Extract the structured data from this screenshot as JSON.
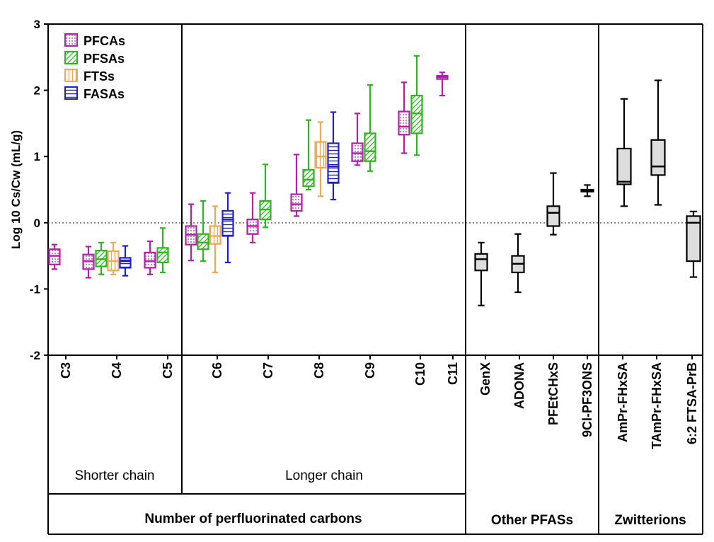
{
  "chart_data": {
    "type": "boxplot",
    "ylabel": "Log 10 Cs/Cw (mL/g)",
    "ylim": [
      -2,
      3
    ],
    "yticks": [
      -2,
      -1,
      0,
      1,
      2,
      3
    ],
    "reference_line": 0,
    "legend": [
      {
        "name": "PFCAs",
        "color": "#b41fa9",
        "pattern": "dots"
      },
      {
        "name": "PFSAs",
        "color": "#2eb51f",
        "pattern": "diagonal"
      },
      {
        "name": "FTSs",
        "color": "#f0a857",
        "pattern": "vertical"
      },
      {
        "name": "FASAs",
        "color": "#2121c9",
        "pattern": "horizontal"
      }
    ],
    "categories": [
      "C3",
      "C4",
      "C5",
      "C6",
      "C7",
      "C8",
      "C9",
      "C10",
      "C11",
      "GenX",
      "ADONA",
      "PFEtCHxS",
      "9Cl-PF3ONS",
      "AmPr-FHxSA",
      "TAmPr-FHxSA",
      "6:2 FTSA-PrB"
    ],
    "boxes": [
      {
        "category": "C3",
        "series": "PFCAs",
        "min": -0.7,
        "q1": -0.63,
        "median": -0.5,
        "q3": -0.4,
        "max": -0.33
      },
      {
        "category": "C4",
        "series": "PFCAs",
        "min": -0.83,
        "q1": -0.7,
        "median": -0.58,
        "q3": -0.48,
        "max": -0.36
      },
      {
        "category": "C4",
        "series": "PFSAs",
        "min": -0.78,
        "q1": -0.66,
        "median": -0.55,
        "q3": -0.42,
        "max": -0.3
      },
      {
        "category": "C4",
        "series": "FTSs",
        "min": -0.78,
        "q1": -0.72,
        "median": -0.58,
        "q3": -0.43,
        "max": -0.3
      },
      {
        "category": "C4",
        "series": "FASAs",
        "min": -0.8,
        "q1": -0.68,
        "median": -0.58,
        "q3": -0.53,
        "max": -0.35
      },
      {
        "category": "C5",
        "series": "PFCAs",
        "min": -0.78,
        "q1": -0.68,
        "median": -0.58,
        "q3": -0.45,
        "max": -0.28
      },
      {
        "category": "C5",
        "series": "PFSAs",
        "min": -0.75,
        "q1": -0.6,
        "median": -0.45,
        "q3": -0.38,
        "max": -0.08
      },
      {
        "category": "C6",
        "series": "PFCAs",
        "min": -0.57,
        "q1": -0.33,
        "median": -0.18,
        "q3": -0.05,
        "max": 0.28
      },
      {
        "category": "C6",
        "series": "PFSAs",
        "min": -0.58,
        "q1": -0.4,
        "median": -0.3,
        "q3": -0.17,
        "max": 0.33
      },
      {
        "category": "C6",
        "series": "FTSs",
        "min": -0.75,
        "q1": -0.32,
        "median": -0.2,
        "q3": -0.05,
        "max": 0.25
      },
      {
        "category": "C6",
        "series": "FASAs",
        "min": -0.6,
        "q1": -0.2,
        "median": 0.05,
        "q3": 0.18,
        "max": 0.45
      },
      {
        "category": "C7",
        "series": "PFCAs",
        "min": -0.3,
        "q1": -0.17,
        "median": -0.05,
        "q3": 0.05,
        "max": 0.45
      },
      {
        "category": "C7",
        "series": "PFSAs",
        "min": -0.07,
        "q1": 0.05,
        "median": 0.2,
        "q3": 0.33,
        "max": 0.88
      },
      {
        "category": "C8",
        "series": "PFCAs",
        "min": 0.1,
        "q1": 0.18,
        "median": 0.28,
        "q3": 0.43,
        "max": 1.03
      },
      {
        "category": "C8",
        "series": "PFSAs",
        "min": 0.5,
        "q1": 0.55,
        "median": 0.65,
        "q3": 0.8,
        "max": 1.55
      },
      {
        "category": "C8",
        "series": "FTSs",
        "min": 0.4,
        "q1": 0.83,
        "median": 1.0,
        "q3": 1.22,
        "max": 1.52
      },
      {
        "category": "C8",
        "series": "FASAs",
        "min": 0.35,
        "q1": 0.6,
        "median": 0.85,
        "q3": 1.2,
        "max": 1.67
      },
      {
        "category": "C9",
        "series": "PFCAs",
        "min": 0.87,
        "q1": 0.93,
        "median": 1.05,
        "q3": 1.2,
        "max": 1.65
      },
      {
        "category": "C9",
        "series": "PFSAs",
        "min": 0.78,
        "q1": 0.93,
        "median": 1.08,
        "q3": 1.35,
        "max": 2.08
      },
      {
        "category": "C10",
        "series": "PFCAs",
        "min": 1.05,
        "q1": 1.33,
        "median": 1.45,
        "q3": 1.68,
        "max": 2.12
      },
      {
        "category": "C10",
        "series": "PFSAs",
        "min": 1.02,
        "q1": 1.35,
        "median": 1.65,
        "q3": 1.92,
        "max": 2.52
      },
      {
        "category": "C11",
        "series": "PFCAs",
        "min": 1.92,
        "q1": 2.17,
        "median": 2.2,
        "q3": 2.22,
        "max": 2.27
      },
      {
        "category": "GenX",
        "series": "Other",
        "min": -1.25,
        "q1": -0.72,
        "median": -0.55,
        "q3": -0.47,
        "max": -0.3
      },
      {
        "category": "ADONA",
        "series": "Other",
        "min": -1.05,
        "q1": -0.75,
        "median": -0.62,
        "q3": -0.5,
        "max": -0.17
      },
      {
        "category": "PFEtCHxS",
        "series": "Other",
        "min": -0.18,
        "q1": -0.05,
        "median": 0.15,
        "q3": 0.25,
        "max": 0.75
      },
      {
        "category": "9Cl-PF3ONS",
        "series": "Other",
        "min": 0.4,
        "q1": 0.47,
        "median": 0.48,
        "q3": 0.5,
        "max": 0.57
      },
      {
        "category": "AmPr-FHxSA",
        "series": "Zwitterion",
        "min": 0.25,
        "q1": 0.58,
        "median": 0.62,
        "q3": 1.12,
        "max": 1.87
      },
      {
        "category": "TAmPr-FHxSA",
        "series": "Zwitterion",
        "min": 0.27,
        "q1": 0.72,
        "median": 0.85,
        "q3": 1.25,
        "max": 2.15
      },
      {
        "category": "6:2 FTSA-PrB",
        "series": "Zwitterion",
        "min": -0.82,
        "q1": -0.58,
        "median": 0.0,
        "q3": 0.1,
        "max": 0.17
      }
    ],
    "groups": {
      "shorter": "Shorter chain",
      "longer": "Longer chain",
      "carbons": "Number of perfluorinated carbons",
      "other": "Other PFASs",
      "zwitterions": "Zwitterions"
    },
    "colors": {
      "other": "#000000",
      "other_fill": "#dddddd"
    }
  }
}
